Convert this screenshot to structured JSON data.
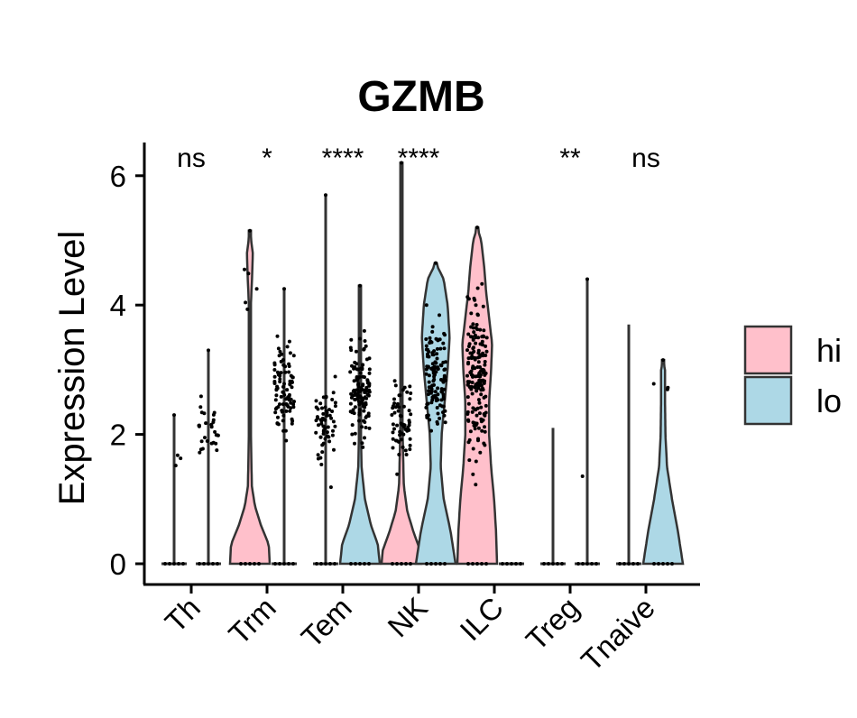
{
  "chart_data": {
    "type": "violin",
    "title": "GZMB",
    "xlabel": "",
    "ylabel": "Expression Level",
    "ylim": [
      -0.3,
      6.5
    ],
    "yticks": [
      0,
      2,
      4,
      6
    ],
    "categories": [
      "Th",
      "Trm",
      "Tem",
      "NK",
      "ILC",
      "Treg",
      "Tnaive"
    ],
    "significance": [
      "ns",
      "*",
      "****",
      "****",
      "",
      "**",
      "ns"
    ],
    "legend": {
      "position": "right",
      "entries": [
        {
          "label": "hi",
          "color": "#FFC0CB"
        },
        {
          "label": "lo",
          "color": "#ADD8E6"
        }
      ]
    },
    "series": [
      {
        "name": "hi",
        "color": "#FFC0CB",
        "max": [
          2.3,
          5.15,
          5.7,
          6.2,
          5.2,
          2.1,
          3.7
        ],
        "has_body": [
          false,
          true,
          false,
          true,
          true,
          false,
          false
        ],
        "densities": {
          "Trm": [
            [
              0,
              1.0
            ],
            [
              0.3,
              0.95
            ],
            [
              0.6,
              0.55
            ],
            [
              0.9,
              0.25
            ],
            [
              1.2,
              0.1
            ],
            [
              2,
              0.05
            ],
            [
              3,
              0.04
            ],
            [
              4,
              0.05
            ],
            [
              4.5,
              0.12
            ],
            [
              4.8,
              0.15
            ],
            [
              5.15,
              0
            ]
          ],
          "NK": [
            [
              0,
              1.0
            ],
            [
              0.2,
              0.95
            ],
            [
              0.5,
              0.6
            ],
            [
              0.8,
              0.3
            ],
            [
              1.2,
              0.12
            ],
            [
              2,
              0.06
            ],
            [
              3,
              0.03
            ],
            [
              4,
              0.02
            ],
            [
              5,
              0.01
            ],
            [
              6.2,
              0
            ]
          ],
          "ILC": [
            [
              0,
              1.0
            ],
            [
              0.5,
              0.95
            ],
            [
              1,
              0.85
            ],
            [
              1.5,
              0.7
            ],
            [
              2,
              0.6
            ],
            [
              2.5,
              0.6
            ],
            [
              3,
              0.7
            ],
            [
              3.4,
              0.75
            ],
            [
              3.8,
              0.6
            ],
            [
              4.2,
              0.45
            ],
            [
              4.6,
              0.35
            ],
            [
              5.0,
              0.2
            ],
            [
              5.2,
              0
            ]
          ]
        }
      },
      {
        "name": "lo",
        "color": "#ADD8E6",
        "max": [
          3.3,
          4.25,
          4.3,
          4.65,
          0.0,
          4.4,
          3.15
        ],
        "has_body": [
          false,
          false,
          true,
          true,
          false,
          false,
          true
        ],
        "densities": {
          "Tem": [
            [
              0,
              1.0
            ],
            [
              0.3,
              0.9
            ],
            [
              0.6,
              0.55
            ],
            [
              1.0,
              0.25
            ],
            [
              1.5,
              0.08
            ],
            [
              2,
              0.05
            ],
            [
              3,
              0.04
            ],
            [
              4,
              0.02
            ],
            [
              4.3,
              0
            ]
          ],
          "NK": [
            [
              0,
              1.0
            ],
            [
              0.5,
              0.75
            ],
            [
              1,
              0.4
            ],
            [
              1.5,
              0.25
            ],
            [
              2,
              0.3
            ],
            [
              2.5,
              0.45
            ],
            [
              3,
              0.6
            ],
            [
              3.5,
              0.7
            ],
            [
              4,
              0.6
            ],
            [
              4.4,
              0.4
            ],
            [
              4.65,
              0
            ]
          ],
          "Tnaive": [
            [
              0,
              1.0
            ],
            [
              0.5,
              0.75
            ],
            [
              1,
              0.45
            ],
            [
              1.5,
              0.2
            ],
            [
              2,
              0.12
            ],
            [
              2.5,
              0.1
            ],
            [
              3,
              0.1
            ],
            [
              3.15,
              0
            ]
          ]
        }
      }
    ]
  }
}
